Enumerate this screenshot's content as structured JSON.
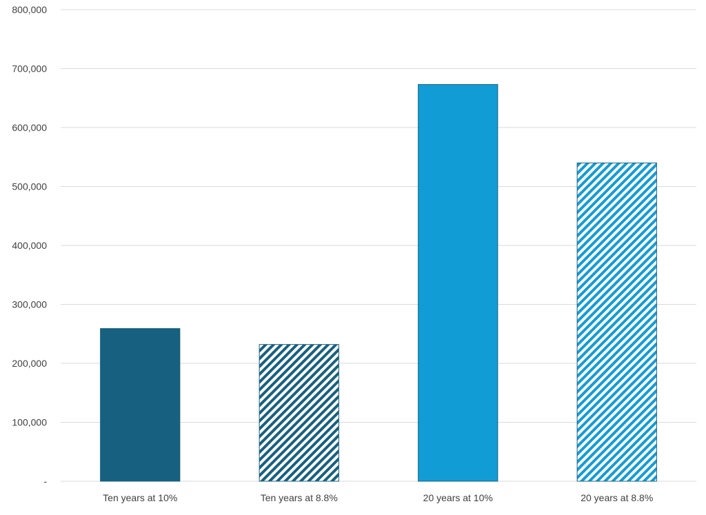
{
  "chart_data": {
    "type": "bar",
    "categories": [
      "Ten years at 10%",
      "Ten years at 8.8%",
      "20 years at 10%",
      "20 years at 8.8%"
    ],
    "values": [
      259000,
      232000,
      673000,
      540000
    ],
    "bar_styles": [
      {
        "fill": "solid",
        "color": "#17607F"
      },
      {
        "fill": "diagonal-stripes",
        "color": "#17607F"
      },
      {
        "fill": "solid",
        "color": "#129CD6"
      },
      {
        "fill": "diagonal-stripes",
        "color": "#129CD6"
      }
    ],
    "ylim": [
      0,
      800000
    ],
    "yticks": [
      0,
      100000,
      200000,
      300000,
      400000,
      500000,
      600000,
      700000,
      800000
    ],
    "ytick_labels": [
      "-",
      "100,000",
      "200,000",
      "300,000",
      "400,000",
      "500,000",
      "600,000",
      "700,000",
      "800,000"
    ],
    "grid": true,
    "title": "",
    "xlabel": "",
    "ylabel": ""
  }
}
